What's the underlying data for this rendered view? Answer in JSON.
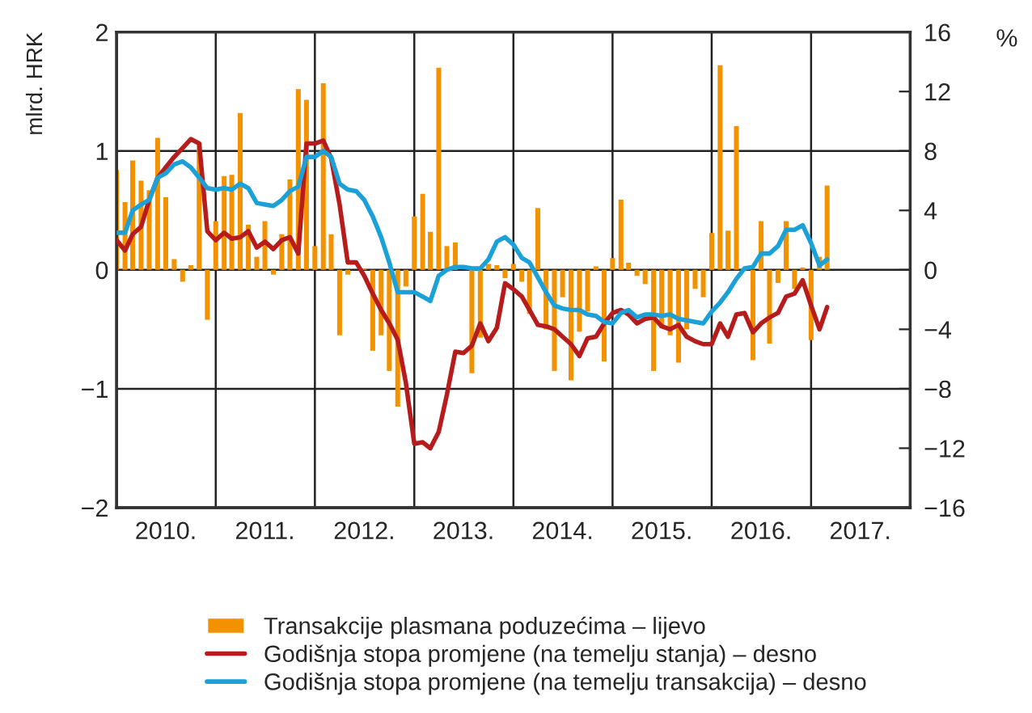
{
  "chart_data": {
    "type": "bar",
    "ylabel": "mlrd. HRK",
    "y2label": "%",
    "x": [
      "2010-01",
      "2010-02",
      "2010-03",
      "2010-04",
      "2010-05",
      "2010-06",
      "2010-07",
      "2010-08",
      "2010-09",
      "2010-10",
      "2010-11",
      "2010-12",
      "2011-01",
      "2011-02",
      "2011-03",
      "2011-04",
      "2011-05",
      "2011-06",
      "2011-07",
      "2011-08",
      "2011-09",
      "2011-10",
      "2011-11",
      "2011-12",
      "2012-01",
      "2012-02",
      "2012-03",
      "2012-04",
      "2012-05",
      "2012-06",
      "2012-07",
      "2012-08",
      "2012-09",
      "2012-10",
      "2012-11",
      "2012-12",
      "2013-01",
      "2013-02",
      "2013-03",
      "2013-04",
      "2013-05",
      "2013-06",
      "2013-07",
      "2013-08",
      "2013-09",
      "2013-10",
      "2013-11",
      "2013-12",
      "2014-01",
      "2014-02",
      "2014-03",
      "2014-04",
      "2014-05",
      "2014-06",
      "2014-07",
      "2014-08",
      "2014-09",
      "2014-10",
      "2014-11",
      "2014-12",
      "2015-01",
      "2015-02",
      "2015-03",
      "2015-04",
      "2015-05",
      "2015-06",
      "2015-07",
      "2015-08",
      "2015-09",
      "2015-10",
      "2015-11",
      "2015-12",
      "2016-01",
      "2016-02",
      "2016-03",
      "2016-04",
      "2016-05",
      "2016-06",
      "2016-07",
      "2016-08",
      "2016-09",
      "2016-10",
      "2016-11",
      "2016-12",
      "2017-01",
      "2017-02",
      "2017-03"
    ],
    "series": [
      {
        "name": "Transakcije plasmana poduzećima – lijevo",
        "color": "#f39200",
        "values": [
          0.84,
          0.57,
          0.92,
          0.75,
          0.67,
          1.11,
          0.61,
          0.09,
          -0.1,
          0.04,
          1.07,
          -0.42,
          0.41,
          0.79,
          0.8,
          1.32,
          0.38,
          0.11,
          0.41,
          -0.04,
          0.3,
          0.76,
          1.52,
          1.43,
          0.2,
          1.57,
          0.3,
          -0.55,
          -0.04,
          null,
          0.01,
          -0.68,
          -0.55,
          -0.85,
          -1.15,
          -0.14,
          0.45,
          0.64,
          0.32,
          1.7,
          0.2,
          0.23,
          null,
          -0.87,
          -0.57,
          0.05,
          0.04,
          -0.07,
          0.05,
          -0.1,
          -0.37,
          0.52,
          -0.5,
          -0.85,
          -0.23,
          -0.93,
          -0.52,
          -0.35,
          0.03,
          -0.77,
          0.1,
          0.59,
          0.06,
          -0.05,
          -0.12,
          -0.85,
          -0.49,
          -0.55,
          -0.78,
          -0.5,
          -0.16,
          -0.23,
          0.31,
          1.72,
          0.33,
          1.21,
          null,
          -0.76,
          0.41,
          -0.62,
          -0.11,
          0.41,
          -0.16,
          0.02,
          -0.59,
          0.11,
          0.71
        ]
      },
      {
        "name": "Godišnja stopa promjene (na temelju stanja) – desno",
        "type": "line",
        "axis": "y2",
        "color": "#b71c1c",
        "values": [
          2.0,
          1.3,
          2.4,
          2.9,
          4.7,
          6.2,
          6.9,
          7.6,
          8.2,
          8.8,
          8.5,
          2.6,
          2.0,
          2.5,
          2.1,
          2.2,
          2.6,
          1.5,
          1.9,
          1.4,
          2.0,
          2.2,
          1.1,
          8.5,
          8.5,
          8.7,
          7.5,
          4.4,
          0.5,
          0.5,
          -0.4,
          -1.6,
          -2.7,
          -3.6,
          -4.7,
          -7.6,
          -11.7,
          -11.6,
          -12.0,
          -10.9,
          -8.4,
          -5.5,
          -5.6,
          -5.1,
          -3.6,
          -4.8,
          -3.9,
          -0.9,
          -1.3,
          -1.8,
          -2.7,
          -3.7,
          -3.8,
          -4.0,
          -4.5,
          -5.0,
          -5.8,
          -4.6,
          -4.5,
          -3.6,
          -2.9,
          -2.7,
          -3.0,
          -3.6,
          -3.3,
          -3.2,
          -3.8,
          -4.0,
          -3.7,
          -4.5,
          -4.8,
          -5.0,
          -5.0,
          -3.6,
          -4.5,
          -3.0,
          -2.9,
          -4.2,
          -3.6,
          -3.2,
          -2.9,
          -1.8,
          -1.6,
          -0.7,
          -2.4,
          -4.0,
          -2.5
        ]
      },
      {
        "name": "Godišnja stopa promjene (na temelju transakcija) – desno",
        "type": "line",
        "axis": "y2",
        "color": "#1ba1d8",
        "values": [
          2.5,
          2.5,
          4.0,
          4.4,
          4.7,
          6.2,
          6.5,
          7.1,
          7.3,
          6.9,
          6.2,
          5.5,
          5.4,
          5.5,
          5.4,
          5.8,
          5.5,
          4.5,
          4.4,
          4.3,
          4.7,
          5.3,
          5.6,
          7.6,
          7.6,
          8.0,
          7.6,
          5.8,
          5.4,
          5.3,
          4.7,
          3.6,
          2.2,
          0.5,
          -1.5,
          -1.5,
          -1.5,
          -1.8,
          -2.1,
          -0.4,
          0.0,
          0.2,
          0.2,
          0.1,
          0.1,
          0.7,
          1.9,
          2.2,
          1.7,
          0.8,
          0.5,
          -0.5,
          -1.5,
          -2.4,
          -2.6,
          -2.7,
          -2.7,
          -3.0,
          -3.1,
          -3.5,
          -3.6,
          -2.9,
          -2.7,
          -3.2,
          -3.0,
          -3.0,
          -3.1,
          -3.0,
          -3.3,
          -3.4,
          -3.5,
          -3.6,
          -2.8,
          -2.2,
          -1.5,
          -0.6,
          0.1,
          0.2,
          1.1,
          1.1,
          1.6,
          2.7,
          2.7,
          3.0,
          1.8,
          0.3,
          0.7
        ]
      }
    ],
    "xlim": [
      "2010-01-01",
      "2018-01-01"
    ],
    "xticks": [
      {
        "value": "2010-07-01",
        "label": "2010."
      },
      {
        "value": "2011-01-01",
        "label": null
      },
      {
        "value": "2011-07-01",
        "label": "2011."
      },
      {
        "value": "2012-01-01",
        "label": null
      },
      {
        "value": "2012-07-01",
        "label": "2012."
      },
      {
        "value": "2013-01-01",
        "label": null
      },
      {
        "value": "2013-07-01",
        "label": "2013."
      },
      {
        "value": "2014-01-01",
        "label": null
      },
      {
        "value": "2014-07-01",
        "label": "2014."
      },
      {
        "value": "2015-01-01",
        "label": null
      },
      {
        "value": "2015-07-01",
        "label": "2015."
      },
      {
        "value": "2016-01-01",
        "label": null
      },
      {
        "value": "2016-07-01",
        "label": "2016."
      },
      {
        "value": "2017-01-01",
        "label": null
      },
      {
        "value": "2017-07-01",
        "label": "2017."
      }
    ],
    "ylim": [
      -2,
      2
    ],
    "yticks": [
      {
        "value": -2,
        "label": "−2"
      },
      {
        "value": -1,
        "label": "−1"
      },
      0,
      1,
      2
    ],
    "y2lim": [
      -16,
      16
    ],
    "y2ticks": [
      {
        "value": -16,
        "label": "−16"
      },
      {
        "value": -12,
        "label": "−12"
      },
      {
        "value": -8,
        "label": "−8"
      },
      {
        "value": -4,
        "label": "−4"
      },
      0,
      4,
      8,
      12,
      16
    ],
    "grid": true,
    "legend": "bottom",
    "line_style": "solid"
  }
}
